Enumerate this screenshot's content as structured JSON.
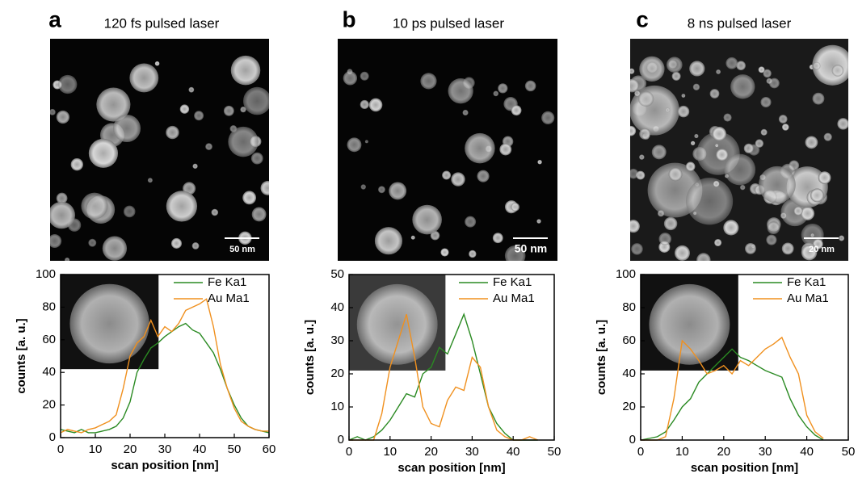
{
  "chart_data": [
    {
      "type": "line",
      "panel": "a",
      "title": "120 fs pulsed laser",
      "scale_bar": "50 nm",
      "xlabel": "scan position [nm]",
      "ylabel": "counts [a. u.]",
      "xlim": [
        0,
        60
      ],
      "xticks": [
        0,
        10,
        20,
        30,
        40,
        50,
        60
      ],
      "ylim": [
        0,
        100
      ],
      "yticks": [
        0,
        20,
        40,
        60,
        80,
        100
      ],
      "x": [
        0,
        2,
        4,
        6,
        8,
        10,
        12,
        14,
        16,
        18,
        20,
        22,
        24,
        26,
        28,
        30,
        32,
        34,
        36,
        38,
        40,
        42,
        44,
        46,
        48,
        50,
        52,
        54,
        56,
        58,
        60
      ],
      "series": [
        {
          "name": "Fe Ka1",
          "color": "#2a8a22",
          "values": [
            5,
            4,
            3,
            5,
            3,
            3,
            4,
            5,
            7,
            12,
            22,
            40,
            48,
            55,
            58,
            62,
            65,
            68,
            70,
            66,
            64,
            58,
            52,
            42,
            30,
            20,
            12,
            7,
            5,
            4,
            3
          ]
        },
        {
          "name": "Au Ma1",
          "color": "#f0901e",
          "values": [
            3,
            5,
            4,
            3,
            5,
            6,
            8,
            10,
            14,
            30,
            50,
            58,
            62,
            72,
            62,
            68,
            65,
            70,
            78,
            80,
            82,
            85,
            68,
            45,
            30,
            18,
            10,
            7,
            5,
            4,
            4
          ]
        }
      ]
    },
    {
      "type": "line",
      "panel": "b",
      "title": "10 ps pulsed laser",
      "scale_bar": "50 nm",
      "xlabel": "scan position [nm]",
      "ylabel": "counts [a. u.]",
      "xlim": [
        0,
        50
      ],
      "xticks": [
        0,
        10,
        20,
        30,
        40,
        50
      ],
      "ylim": [
        0,
        50
      ],
      "yticks": [
        0,
        10,
        20,
        30,
        40,
        50
      ],
      "x": [
        0,
        2,
        4,
        6,
        8,
        10,
        12,
        14,
        16,
        18,
        20,
        22,
        24,
        26,
        28,
        30,
        32,
        34,
        36,
        38,
        40,
        42,
        44,
        46
      ],
      "series": [
        {
          "name": "Fe Ka1",
          "color": "#2a8a22",
          "values": [
            0,
            1,
            0,
            1,
            3,
            6,
            10,
            14,
            13,
            20,
            22,
            28,
            26,
            32,
            38,
            30,
            20,
            10,
            5,
            2,
            0,
            0,
            0,
            0
          ]
        },
        {
          "name": "Au Ma1",
          "color": "#f0901e",
          "values": [
            0,
            0,
            0,
            0,
            8,
            22,
            30,
            38,
            25,
            10,
            5,
            4,
            12,
            16,
            15,
            25,
            22,
            10,
            3,
            1,
            0,
            0,
            1,
            0
          ]
        }
      ]
    },
    {
      "type": "line",
      "panel": "c",
      "title": "8 ns pulsed laser",
      "scale_bar": "20 nm",
      "xlabel": "scan position [nm]",
      "ylabel": "counts [a. u.]",
      "xlim": [
        0,
        50
      ],
      "xticks": [
        0,
        10,
        20,
        30,
        40,
        50
      ],
      "ylim": [
        0,
        100
      ],
      "yticks": [
        0,
        20,
        40,
        60,
        80,
        100
      ],
      "x": [
        0,
        2,
        4,
        6,
        8,
        10,
        12,
        14,
        16,
        18,
        20,
        22,
        24,
        26,
        28,
        30,
        32,
        34,
        36,
        38,
        40,
        42,
        44
      ],
      "series": [
        {
          "name": "Fe Ka1",
          "color": "#2a8a22",
          "values": [
            0,
            1,
            2,
            5,
            12,
            20,
            25,
            35,
            40,
            45,
            50,
            55,
            50,
            48,
            45,
            42,
            40,
            38,
            25,
            15,
            8,
            3,
            0
          ]
        },
        {
          "name": "Au Ma1",
          "color": "#f0901e",
          "values": [
            0,
            0,
            0,
            2,
            25,
            60,
            55,
            48,
            40,
            42,
            45,
            40,
            48,
            45,
            50,
            55,
            58,
            62,
            50,
            40,
            15,
            5,
            1
          ]
        }
      ]
    }
  ]
}
